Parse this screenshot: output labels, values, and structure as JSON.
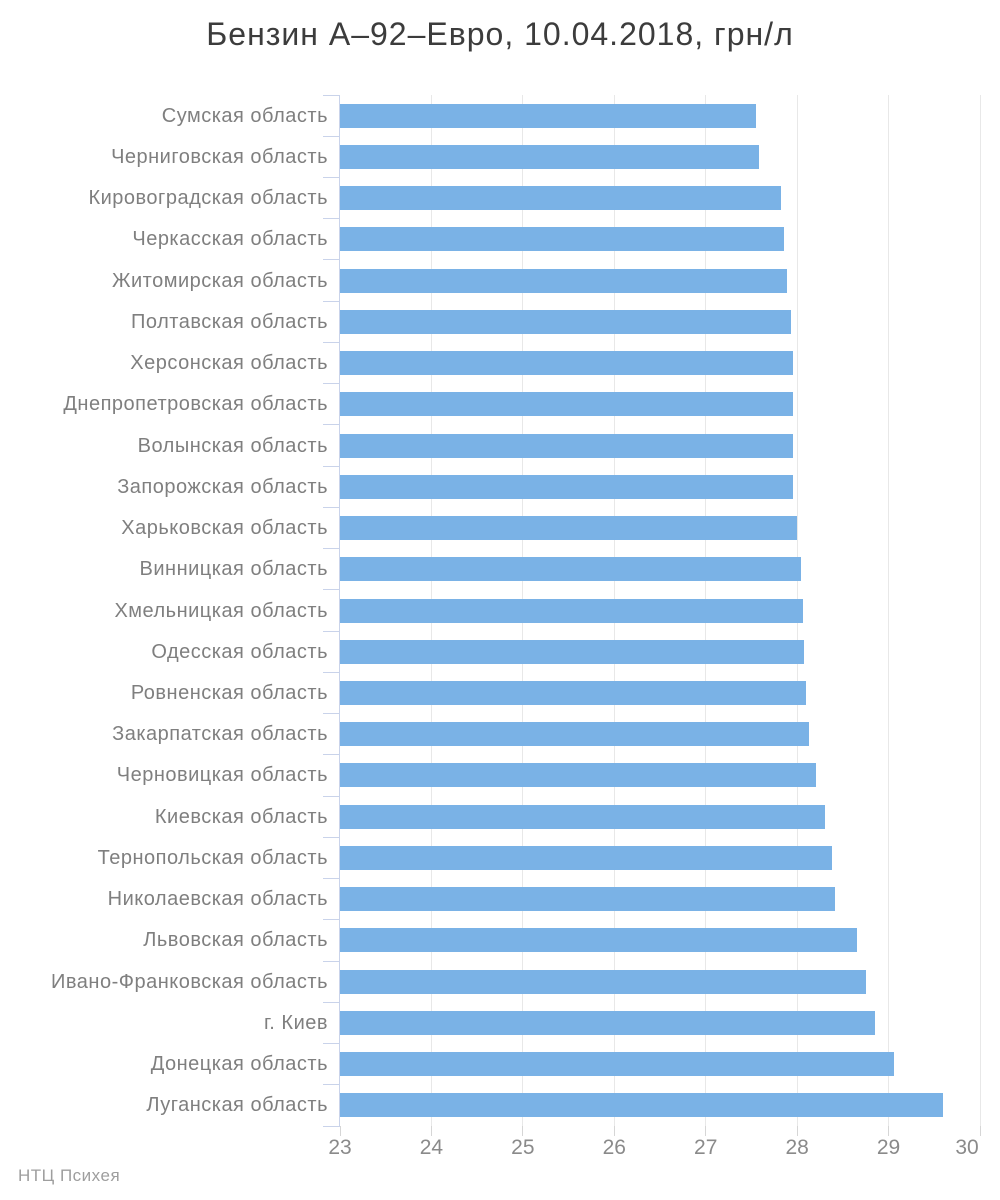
{
  "footer": {
    "watermark": "НТЦ Психея"
  },
  "colors": {
    "bar": "#7ab2e6",
    "grid": "#e8e8e8",
    "axis": "#c9d3ea",
    "btick": "#d6d6d6",
    "label": "#7f7f7f",
    "tick_label": "#8a8a8a",
    "title": "#3c3c3c",
    "watermark": "#9e9e9e",
    "background": "#ffffff"
  },
  "chart_data": {
    "type": "bar",
    "orientation": "horizontal",
    "title": "Бензин А–92–Евро, 10.04.2018, грн/л",
    "xlabel": "",
    "ylabel": "",
    "xlim": [
      23,
      30
    ],
    "x_ticks": [
      23,
      24,
      25,
      26,
      27,
      28,
      29,
      30
    ],
    "grid": "vertical",
    "legend": false,
    "categories": [
      "Сумская область",
      "Черниговская область",
      "Кировоградская область",
      "Черкасская область",
      "Житомирская область",
      "Полтавская область",
      "Херсонская область",
      "Днепропетровская область",
      "Волынская область",
      "Запорожская область",
      "Харьковская область",
      "Винницкая область",
      "Хмельницкая область",
      "Одесская область",
      "Ровненская область",
      "Закарпатская область",
      "Черновицкая область",
      "Киевская область",
      "Тернопольская область",
      "Николаевская область",
      "Львовская область",
      "Ивано-Франковская область",
      "г. Киев",
      "Донецкая область",
      "Луганская область"
    ],
    "values": [
      27.55,
      27.58,
      27.82,
      27.86,
      27.89,
      27.93,
      27.95,
      27.95,
      27.95,
      27.95,
      28.0,
      28.04,
      28.06,
      28.08,
      28.1,
      28.13,
      28.21,
      28.3,
      28.38,
      28.41,
      28.65,
      28.75,
      28.85,
      29.06,
      29.6
    ]
  }
}
